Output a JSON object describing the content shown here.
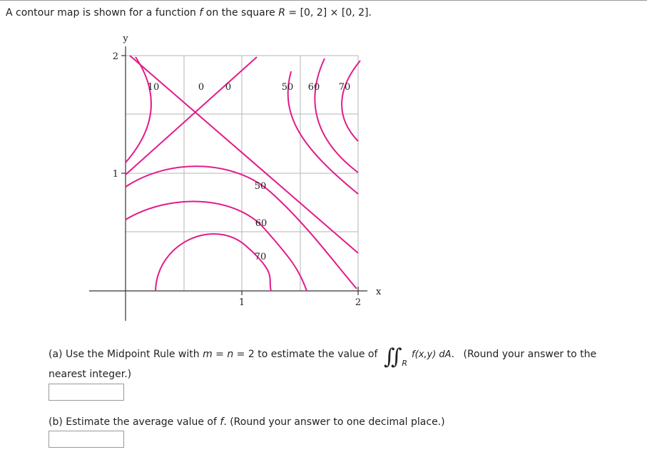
{
  "header": {
    "parts": [
      "A contour map is shown for a function ",
      "f",
      " on the square ",
      "R",
      " = [0, 2] × [0, 2]."
    ]
  },
  "figure": {
    "y_axis_label": "y",
    "x_axis_label": "x",
    "y_ticks": [
      "2",
      "1"
    ],
    "x_ticks": [
      "1",
      "2"
    ],
    "contour_labels": [
      "10",
      "0",
      "0",
      "50",
      "60",
      "70",
      "50",
      "60",
      "70"
    ]
  },
  "part_a": {
    "parts": [
      "(a) Use the Midpoint Rule with ",
      "m",
      " = ",
      "n",
      " = 2 to estimate the value of "
    ],
    "integral": "∬",
    "region": "R",
    "integrand": "f(x,y) dA",
    "dA_period": ".",
    "note": "(Round your answer to the nearest integer.)"
  },
  "part_b": {
    "parts": [
      "(b) Estimate the average value of ",
      "f",
      ". (Round your answer to one decimal place.)"
    ]
  }
}
